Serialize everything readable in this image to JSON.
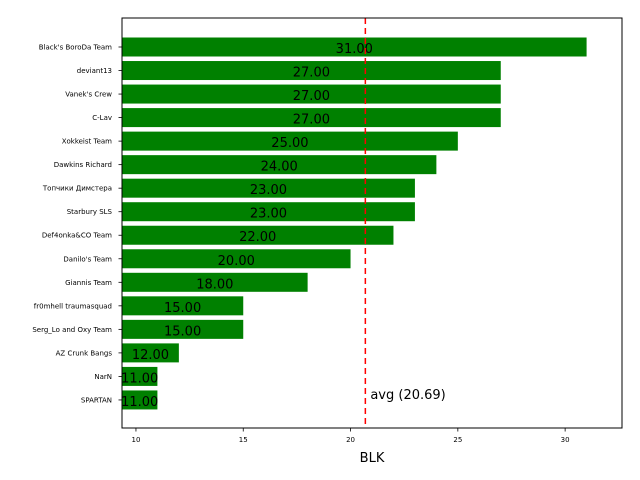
{
  "chart_data": {
    "type": "bar",
    "orientation": "horizontal",
    "categories": [
      "Black's BoroDa Team",
      "deviant13",
      "Vanek's Crew",
      "C-Lav",
      "Xokkeist Team",
      "Dawkins Richard",
      "Топчики Димстера",
      "Starbury SLS",
      "Def4onka&CO Team",
      "Danilo's Team",
      "Giannis Team",
      "fr0mhell traumasquad",
      "Serg_Lo and Oxy Team",
      "AZ Crunk Bangs",
      "NarN",
      "SPARTAN"
    ],
    "values": [
      31,
      27,
      27,
      27,
      25,
      24,
      23,
      23,
      22,
      20,
      18,
      15,
      15,
      12,
      11,
      11
    ],
    "value_labels": [
      "31.00",
      "27.00",
      "27.00",
      "27.00",
      "25.00",
      "24.00",
      "23.00",
      "23.00",
      "22.00",
      "20.00",
      "18.00",
      "15.00",
      "15.00",
      "12.00",
      "11.00",
      "11.00"
    ],
    "xlabel": "BLK",
    "ylabel": "",
    "xlim": [
      9.35,
      32.65
    ],
    "x_ticks": [
      10,
      15,
      20,
      25,
      30
    ],
    "x_tick_labels": [
      "10",
      "15",
      "20",
      "25",
      "30"
    ],
    "average": 20.69,
    "average_label": "avg (20.69)",
    "grid": false,
    "legend": "none",
    "colors": {
      "bar": "#008000",
      "avg_line": "#ff0000"
    }
  }
}
